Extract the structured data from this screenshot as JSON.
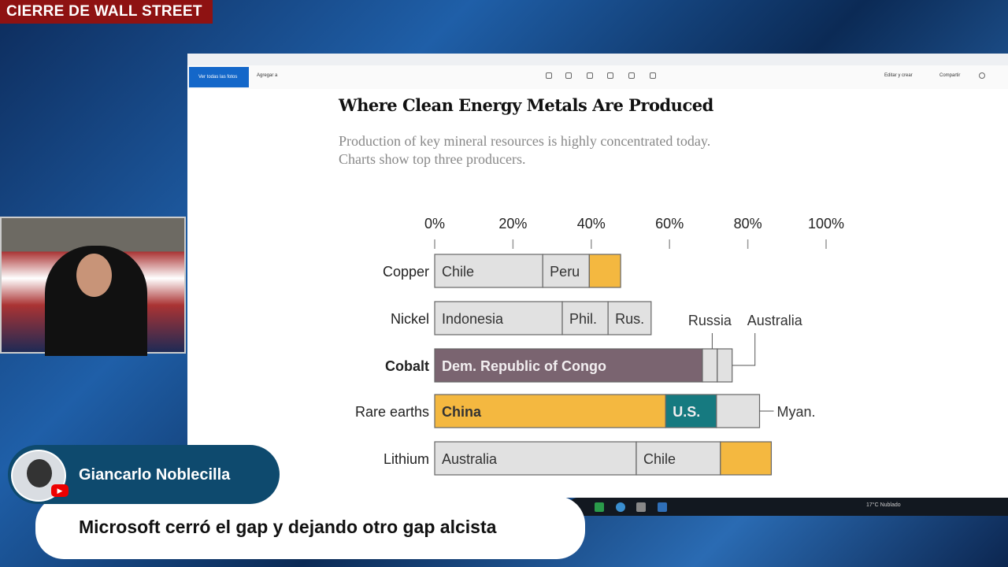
{
  "broadcast": {
    "banner": "CIERRE DE WALL STREET",
    "presenter_name": "Giancarlo Noblecilla",
    "caption": "Microsoft cerró el gap y dejando otro gap alcista",
    "youtube_icon": "play-icon"
  },
  "viewer": {
    "all_photos_label": "Ver todas las fotos",
    "add_label": "Agregar a",
    "edit_label": "Editar y crear",
    "share_label": "Compartir"
  },
  "taskbar": {
    "weather": "17°C Nublado"
  },
  "chart_data": {
    "type": "bar",
    "orientation": "horizontal",
    "stacked": true,
    "title": "Where Clean Energy Metals Are Produced",
    "subtitle": [
      "Production of key mineral resources is highly concentrated today.",
      "Charts show top three producers."
    ],
    "xlim": [
      0,
      100
    ],
    "xticks": [
      "0%",
      "20%",
      "40%",
      "60%",
      "80%",
      "100%"
    ],
    "grid": false,
    "colors": {
      "other": "#e1e1e1",
      "china": "#f4b840",
      "drc": "#7a6470",
      "us": "#167a80"
    },
    "categories": [
      "Copper",
      "Nickel",
      "Cobalt",
      "Rare earths",
      "Lithium"
    ],
    "highlight_category": "Cobalt",
    "bars": [
      {
        "category": "Copper",
        "segments": [
          {
            "label": "Chile",
            "value": 27.6,
            "color": "other"
          },
          {
            "label": "Peru",
            "value": 11.9,
            "color": "other"
          },
          {
            "label": "",
            "value": 8,
            "color": "china"
          }
        ]
      },
      {
        "category": "Nickel",
        "segments": [
          {
            "label": "Indonesia",
            "value": 32.6,
            "color": "other"
          },
          {
            "label": "Phil.",
            "value": 11.7,
            "color": "other"
          },
          {
            "label": "Rus.",
            "value": 11,
            "color": "other"
          }
        ]
      },
      {
        "category": "Cobalt",
        "segments": [
          {
            "label": "Dem. Republic of Congo",
            "value": 68.4,
            "color": "drc"
          },
          {
            "label": "Russia",
            "value": 3.8,
            "color": "other",
            "callout": true
          },
          {
            "label": "Australia",
            "value": 3.8,
            "color": "other",
            "callout": true
          }
        ]
      },
      {
        "category": "Rare earths",
        "segments": [
          {
            "label": "China",
            "value": 59,
            "color": "china"
          },
          {
            "label": "U.S.",
            "value": 13,
            "color": "us"
          },
          {
            "label": "Myan.",
            "value": 11,
            "color": "other",
            "callout": true
          }
        ]
      },
      {
        "category": "Lithium",
        "segments": [
          {
            "label": "Australia",
            "value": 51.5,
            "color": "other"
          },
          {
            "label": "Chile",
            "value": 21.5,
            "color": "other"
          },
          {
            "label": "",
            "value": 13,
            "color": "china"
          }
        ]
      }
    ]
  }
}
